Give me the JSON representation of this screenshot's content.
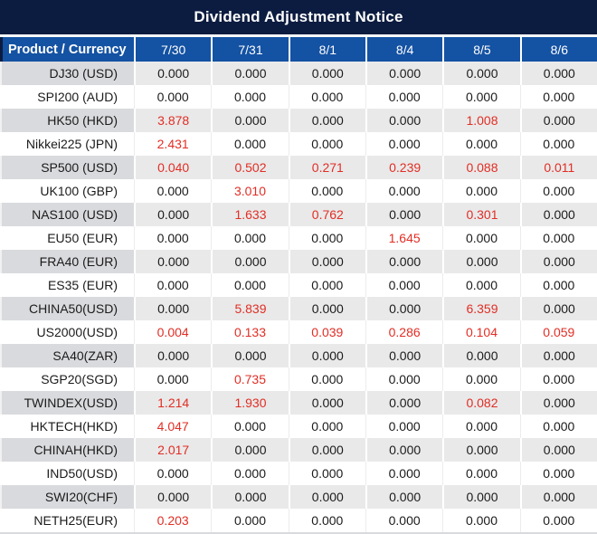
{
  "title": "Dividend Adjustment Notice",
  "table": {
    "columns": [
      "Product / Currency",
      "7/30",
      "7/31",
      "8/1",
      "8/4",
      "8/5",
      "8/6"
    ],
    "rows": [
      {
        "product": "DJ30 (USD)",
        "values": [
          "0.000",
          "0.000",
          "0.000",
          "0.000",
          "0.000",
          "0.000"
        ]
      },
      {
        "product": "SPI200 (AUD)",
        "values": [
          "0.000",
          "0.000",
          "0.000",
          "0.000",
          "0.000",
          "0.000"
        ]
      },
      {
        "product": "HK50 (HKD)",
        "values": [
          "3.878",
          "0.000",
          "0.000",
          "0.000",
          "1.008",
          "0.000"
        ]
      },
      {
        "product": "Nikkei225 (JPN)",
        "values": [
          "2.431",
          "0.000",
          "0.000",
          "0.000",
          "0.000",
          "0.000"
        ]
      },
      {
        "product": "SP500 (USD)",
        "values": [
          "0.040",
          "0.502",
          "0.271",
          "0.239",
          "0.088",
          "0.011"
        ]
      },
      {
        "product": "UK100 (GBP)",
        "values": [
          "0.000",
          "3.010",
          "0.000",
          "0.000",
          "0.000",
          "0.000"
        ]
      },
      {
        "product": "NAS100 (USD)",
        "values": [
          "0.000",
          "1.633",
          "0.762",
          "0.000",
          "0.301",
          "0.000"
        ]
      },
      {
        "product": "EU50 (EUR)",
        "values": [
          "0.000",
          "0.000",
          "0.000",
          "1.645",
          "0.000",
          "0.000"
        ]
      },
      {
        "product": "FRA40 (EUR)",
        "values": [
          "0.000",
          "0.000",
          "0.000",
          "0.000",
          "0.000",
          "0.000"
        ]
      },
      {
        "product": "ES35 (EUR)",
        "values": [
          "0.000",
          "0.000",
          "0.000",
          "0.000",
          "0.000",
          "0.000"
        ]
      },
      {
        "product": "CHINA50(USD)",
        "values": [
          "0.000",
          "5.839",
          "0.000",
          "0.000",
          "6.359",
          "0.000"
        ]
      },
      {
        "product": "US2000(USD)",
        "values": [
          "0.004",
          "0.133",
          "0.039",
          "0.286",
          "0.104",
          "0.059"
        ]
      },
      {
        "product": "SA40(ZAR)",
        "values": [
          "0.000",
          "0.000",
          "0.000",
          "0.000",
          "0.000",
          "0.000"
        ]
      },
      {
        "product": "SGP20(SGD)",
        "values": [
          "0.000",
          "0.735",
          "0.000",
          "0.000",
          "0.000",
          "0.000"
        ]
      },
      {
        "product": "TWINDEX(USD)",
        "values": [
          "1.214",
          "1.930",
          "0.000",
          "0.000",
          "0.082",
          "0.000"
        ]
      },
      {
        "product": "HKTECH(HKD)",
        "values": [
          "4.047",
          "0.000",
          "0.000",
          "0.000",
          "0.000",
          "0.000"
        ]
      },
      {
        "product": "CHINAH(HKD)",
        "values": [
          "2.017",
          "0.000",
          "0.000",
          "0.000",
          "0.000",
          "0.000"
        ]
      },
      {
        "product": "IND50(USD)",
        "values": [
          "0.000",
          "0.000",
          "0.000",
          "0.000",
          "0.000",
          "0.000"
        ]
      },
      {
        "product": "SWI20(CHF)",
        "values": [
          "0.000",
          "0.000",
          "0.000",
          "0.000",
          "0.000",
          "0.000"
        ]
      },
      {
        "product": "NETH25(EUR)",
        "values": [
          "0.203",
          "0.000",
          "0.000",
          "0.000",
          "0.000",
          "0.000"
        ]
      }
    ]
  },
  "colors": {
    "title_bg": "#0c1c40",
    "header_bg": "#1452a3",
    "row_stripe_value_bg": "#e9e9e9",
    "row_stripe_product_bg": "#d9dadd",
    "value_zero_text": "#1b1b1b",
    "value_nonzero_text": "#e12e25"
  }
}
